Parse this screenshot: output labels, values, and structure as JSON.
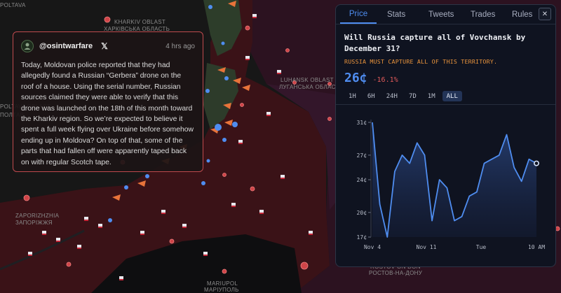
{
  "map": {
    "labels": [
      "KHARKIV OBLAST",
      "ХАРКІВСЬКА ОБЛАСТЬ",
      "LUHANSK OBLAST",
      "ЛУГАНСЬКА ОБЛАСТЬ",
      "ZAPORIZHZHIA",
      "ЗАПОРІЖЖЯ",
      "MARIUPOL",
      "МАРІУПОЛЬ",
      "ROSTOV ON DON",
      "РОСТОВ-НА-ДОНУ",
      "POLTAVA",
      "POLTAVA OBLAST",
      "ПОЛТАВ"
    ],
    "colors": {
      "occupied": "#3b1318",
      "russia": "#2e1222",
      "frontline": "#2f3d2b",
      "ukraine": "#171717"
    }
  },
  "tweet": {
    "handle": "@osintwarfare",
    "platform_icon": "x-logo-icon",
    "time": "4 hrs ago",
    "text": "Today, Moldovan police reported that they had allegedly found a Russian “Gerbera” drone on the roof of a house. Using the serial number, Russian sources claimed they were able to verify that this drone was launched on the 18th of this month toward the Kharkiv region. So we’re expected to believe it spent a full week flying over Ukraine before somehow ending up in Moldova? On top of that, some of the parts that had fallen off were apparently taped back on with regular Scotch tape."
  },
  "panel": {
    "tabs": [
      "Price",
      "Stats",
      "Tweets",
      "Trades",
      "Rules"
    ],
    "active_tab": "Price",
    "close_label": "✕",
    "question": "Will Russia capture all of Vovchansk by December 31?",
    "subtext": "RUSSIA MUST CAPTURE ALL OF THIS TERRITORY.",
    "price": "26¢",
    "change": "-16.1%",
    "ranges": [
      "1H",
      "6H",
      "24H",
      "7D",
      "1M",
      "ALL"
    ],
    "selected_range": "ALL",
    "accent": "#4f8df0"
  },
  "chart_data": {
    "type": "area",
    "yticks": [
      "31¢",
      "27¢",
      "24¢",
      "20¢",
      "17¢"
    ],
    "ytick_values": [
      31,
      27,
      24,
      20,
      17
    ],
    "xticks": [
      "Nov 4",
      "Nov 11",
      "Tue",
      "10 AM"
    ],
    "ylim": [
      17,
      31
    ],
    "values": [
      31,
      21,
      17,
      25,
      27,
      26,
      28.5,
      27,
      19,
      24,
      23,
      19,
      19.5,
      22,
      22.5,
      26,
      26.5,
      27,
      29.5,
      25.5,
      23.8,
      26.5,
      26
    ],
    "color": "#4f8df0"
  }
}
